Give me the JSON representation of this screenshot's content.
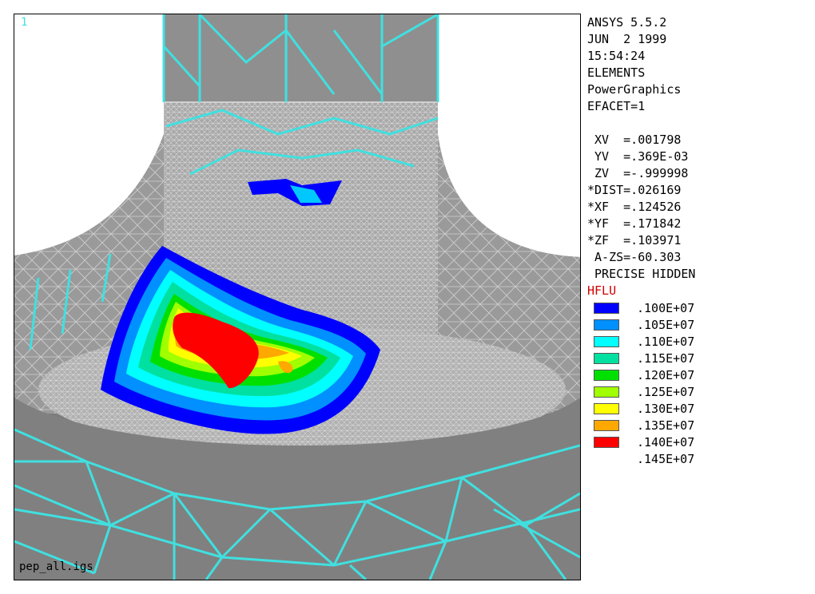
{
  "viewport": {
    "window_number": "1",
    "file_name": "pep_all.igs"
  },
  "info": {
    "lines": [
      "ANSYS 5.5.2",
      "JUN  2 1999",
      "15:54:24",
      "ELEMENTS",
      "PowerGraphics",
      "EFACET=1"
    ],
    "view_lines": [
      " XV  =.001798",
      " YV  =.369E-03",
      " ZV  =-.999998",
      "*DIST=.026169",
      "*XF  =.124526",
      "*YF  =.171842",
      "*ZF  =.103971",
      " A-ZS=-60.303",
      " PRECISE HIDDEN"
    ],
    "quantity": "HFLU"
  },
  "legend": [
    {
      "label": ".100E+07",
      "color": "#0000ff"
    },
    {
      "label": ".105E+07",
      "color": "#0090ff"
    },
    {
      "label": ".110E+07",
      "color": "#00ffff"
    },
    {
      "label": ".115E+07",
      "color": "#00e0a0"
    },
    {
      "label": ".120E+07",
      "color": "#00e000"
    },
    {
      "label": ".125E+07",
      "color": "#a0ff00"
    },
    {
      "label": ".130E+07",
      "color": "#ffff00"
    },
    {
      "label": ".135E+07",
      "color": "#ffa800"
    },
    {
      "label": ".140E+07",
      "color": "#ff0000"
    },
    {
      "label": ".145E+07",
      "color": null
    }
  ],
  "colors": {
    "mesh_edge": "#40e0e0",
    "surface": "#8a8a8a"
  }
}
